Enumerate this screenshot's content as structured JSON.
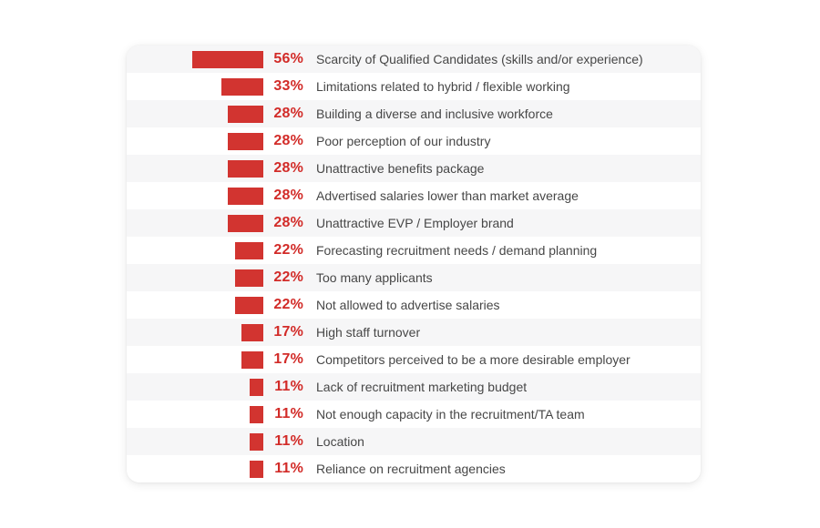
{
  "chart_data": {
    "type": "bar",
    "orientation": "horizontal",
    "title": "",
    "unit": "%",
    "value_format": "percent",
    "max_value": 56,
    "xlim": [
      0,
      56
    ],
    "grid": false,
    "legend": false,
    "categories": [
      "Scarcity of Qualified Candidates (skills and/or experience)",
      "Limitations related to hybrid / flexible working",
      "Building a diverse and inclusive workforce",
      "Poor perception of our industry",
      "Unattractive benefits package",
      "Advertised salaries lower than market average",
      "Unattractive EVP / Employer brand",
      "Forecasting recruitment needs / demand planning",
      "Too many applicants",
      "Not allowed to advertise salaries",
      "High staff turnover",
      "Competitors perceived to be a more desirable employer",
      "Lack of recruitment marketing budget",
      "Not enough capacity in the recruitment/TA team",
      "Location",
      "Reliance on recruitment agencies"
    ],
    "values": [
      56,
      33,
      28,
      28,
      28,
      28,
      28,
      22,
      22,
      22,
      17,
      17,
      11,
      11,
      11,
      11
    ],
    "value_labels": [
      "56%",
      "33%",
      "28%",
      "28%",
      "28%",
      "28%",
      "28%",
      "22%",
      "22%",
      "22%",
      "17%",
      "17%",
      "11%",
      "11%",
      "11%",
      "11%"
    ],
    "colors": {
      "bar": "#d23430",
      "value_text": "#d22b28",
      "label_text": "#474747",
      "stripe_odd": "#f6f6f7",
      "stripe_even": "#ffffff",
      "page_background": "#ffffff",
      "card_background": "#ffffff"
    }
  }
}
